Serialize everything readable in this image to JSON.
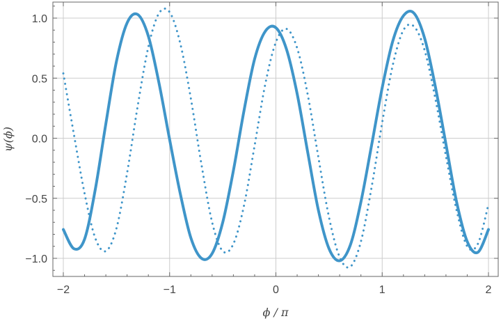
{
  "chart_data": {
    "type": "line",
    "title": "",
    "xlabel": "ϕ / π",
    "ylabel": "ψ(ϕ)",
    "xlim": [
      -2.0,
      2.0
    ],
    "ylim": [
      -1.15,
      1.15
    ],
    "x_ticks": [
      -2,
      -1,
      0,
      1,
      2
    ],
    "x_tick_labels": [
      "−2",
      "−1",
      "0",
      "1",
      "2"
    ],
    "y_ticks": [
      -1.0,
      -0.5,
      0.0,
      0.5,
      1.0
    ],
    "y_tick_labels": [
      "−1.0",
      "−0.5",
      "0.0",
      "0.5",
      "1.0"
    ],
    "grid": true,
    "series": [
      {
        "style": "solid",
        "color": "#3f95c9",
        "x": [
          -2.0,
          -1.9,
          -1.8,
          -1.7,
          -1.6,
          -1.5,
          -1.4,
          -1.3,
          -1.2,
          -1.1,
          -1.0,
          -0.9,
          -0.8,
          -0.7,
          -0.6,
          -0.5,
          -0.4,
          -0.3,
          -0.2,
          -0.1,
          0.0,
          0.1,
          0.2,
          0.3,
          0.4,
          0.5,
          0.6,
          0.7,
          0.8,
          0.9,
          1.0,
          1.1,
          1.2,
          1.3,
          1.4,
          1.5,
          1.6,
          1.7,
          1.8,
          1.9,
          2.0
        ],
        "y": [
          -0.76,
          -0.92,
          -0.84,
          -0.43,
          0.12,
          0.64,
          0.96,
          1.03,
          0.85,
          0.46,
          -0.01,
          -0.46,
          -0.83,
          -1.0,
          -0.96,
          -0.7,
          -0.27,
          0.23,
          0.66,
          0.89,
          0.92,
          0.74,
          0.37,
          -0.12,
          -0.6,
          -0.92,
          -1.02,
          -0.89,
          -0.53,
          -0.06,
          0.42,
          0.81,
          1.02,
          1.04,
          0.83,
          0.43,
          -0.05,
          -0.53,
          -0.86,
          -0.95,
          -0.76
        ]
      },
      {
        "style": "dotted",
        "color": "#3f95c9",
        "x": [
          -2.0,
          -1.9,
          -1.8,
          -1.7,
          -1.6,
          -1.5,
          -1.4,
          -1.3,
          -1.2,
          -1.1,
          -1.0,
          -0.9,
          -0.8,
          -0.7,
          -0.6,
          -0.5,
          -0.4,
          -0.3,
          -0.2,
          -0.1,
          0.0,
          0.1,
          0.2,
          0.3,
          0.4,
          0.5,
          0.6,
          0.7,
          0.8,
          0.9,
          1.0,
          1.1,
          1.2,
          1.3,
          1.4,
          1.5,
          1.6,
          1.7,
          1.8,
          1.9,
          2.0
        ],
        "y": [
          0.54,
          0.03,
          -0.46,
          -0.83,
          -0.94,
          -0.75,
          -0.29,
          0.27,
          0.76,
          1.04,
          1.05,
          0.79,
          0.33,
          -0.22,
          -0.7,
          -0.94,
          -0.88,
          -0.56,
          -0.06,
          0.45,
          0.8,
          0.91,
          0.75,
          0.36,
          -0.16,
          -0.66,
          -0.99,
          -1.07,
          -0.86,
          -0.41,
          0.13,
          0.61,
          0.9,
          0.93,
          0.73,
          0.33,
          -0.15,
          -0.6,
          -0.9,
          -0.88,
          -0.55
        ]
      }
    ]
  },
  "colors": {
    "series": "#3f95c9",
    "grid": "#cccccc",
    "frame": "#666666",
    "text": "#444444"
  }
}
